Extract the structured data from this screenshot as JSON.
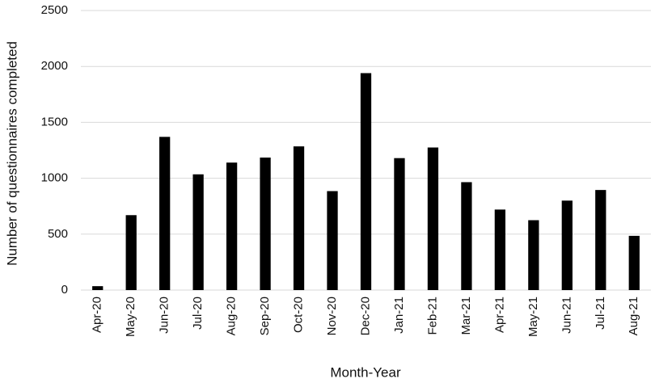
{
  "chart_data": {
    "type": "bar",
    "x_label": "Month-Year",
    "y_label": "Number of questionnaires completed",
    "categories": [
      "Apr-20",
      "May-20",
      "Jun-20",
      "Jul-20",
      "Aug-20",
      "Sep-20",
      "Oct-20",
      "Nov-20",
      "Dec-20",
      "Jan-21",
      "Feb-21",
      "Mar-21",
      "Apr-21",
      "May-21",
      "Jun-21",
      "Jul-21",
      "Aug-21"
    ],
    "values": [
      35,
      670,
      1370,
      1035,
      1140,
      1185,
      1285,
      885,
      1940,
      1180,
      1275,
      965,
      720,
      625,
      800,
      895,
      485
    ],
    "color": "#000000",
    "ylim": [
      0,
      2500
    ],
    "yticks": [
      0,
      500,
      1000,
      1500,
      2000,
      2500
    ],
    "grid": true
  }
}
